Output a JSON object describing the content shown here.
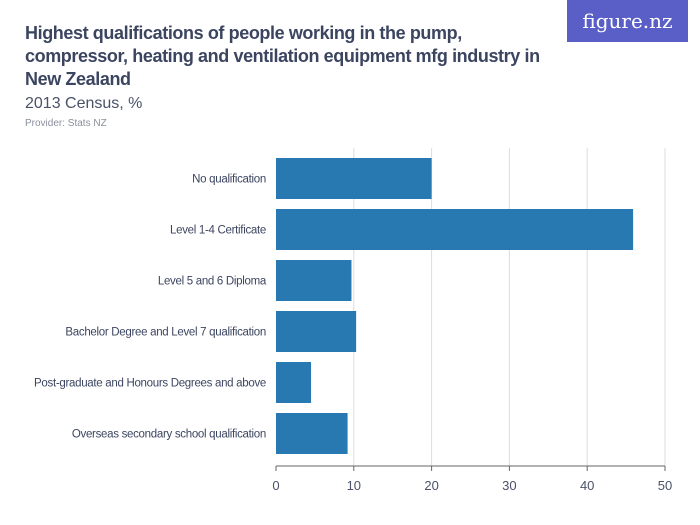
{
  "header": {
    "title": "Highest qualifications of people working in the pump, compressor, heating and ventilation equipment mfg industry in New Zealand",
    "subtitle": "2013 Census, %",
    "provider": "Provider: Stats NZ",
    "logo": "figure.nz"
  },
  "colors": {
    "bar": "#2878b2",
    "logo_bg": "#5a5fc8",
    "grid": "#dddddd"
  },
  "chart_data": {
    "type": "bar",
    "orientation": "horizontal",
    "title": "Highest qualifications of people working in the pump, compressor, heating and ventilation equipment mfg industry in New Zealand",
    "subtitle": "2013 Census, %",
    "categories": [
      "No qualification",
      "Level 1-4 Certificate",
      "Level 5 and 6 Diploma",
      "Bachelor Degree and Level 7 qualification",
      "Post-graduate and Honours Degrees and above",
      "Overseas secondary school qualification"
    ],
    "values": [
      20.0,
      45.9,
      9.7,
      10.3,
      4.5,
      9.2
    ],
    "xlim": [
      0,
      50
    ],
    "xticks": [
      "0",
      "10",
      "20",
      "30",
      "40",
      "50"
    ],
    "grid": true,
    "legend": "none"
  }
}
